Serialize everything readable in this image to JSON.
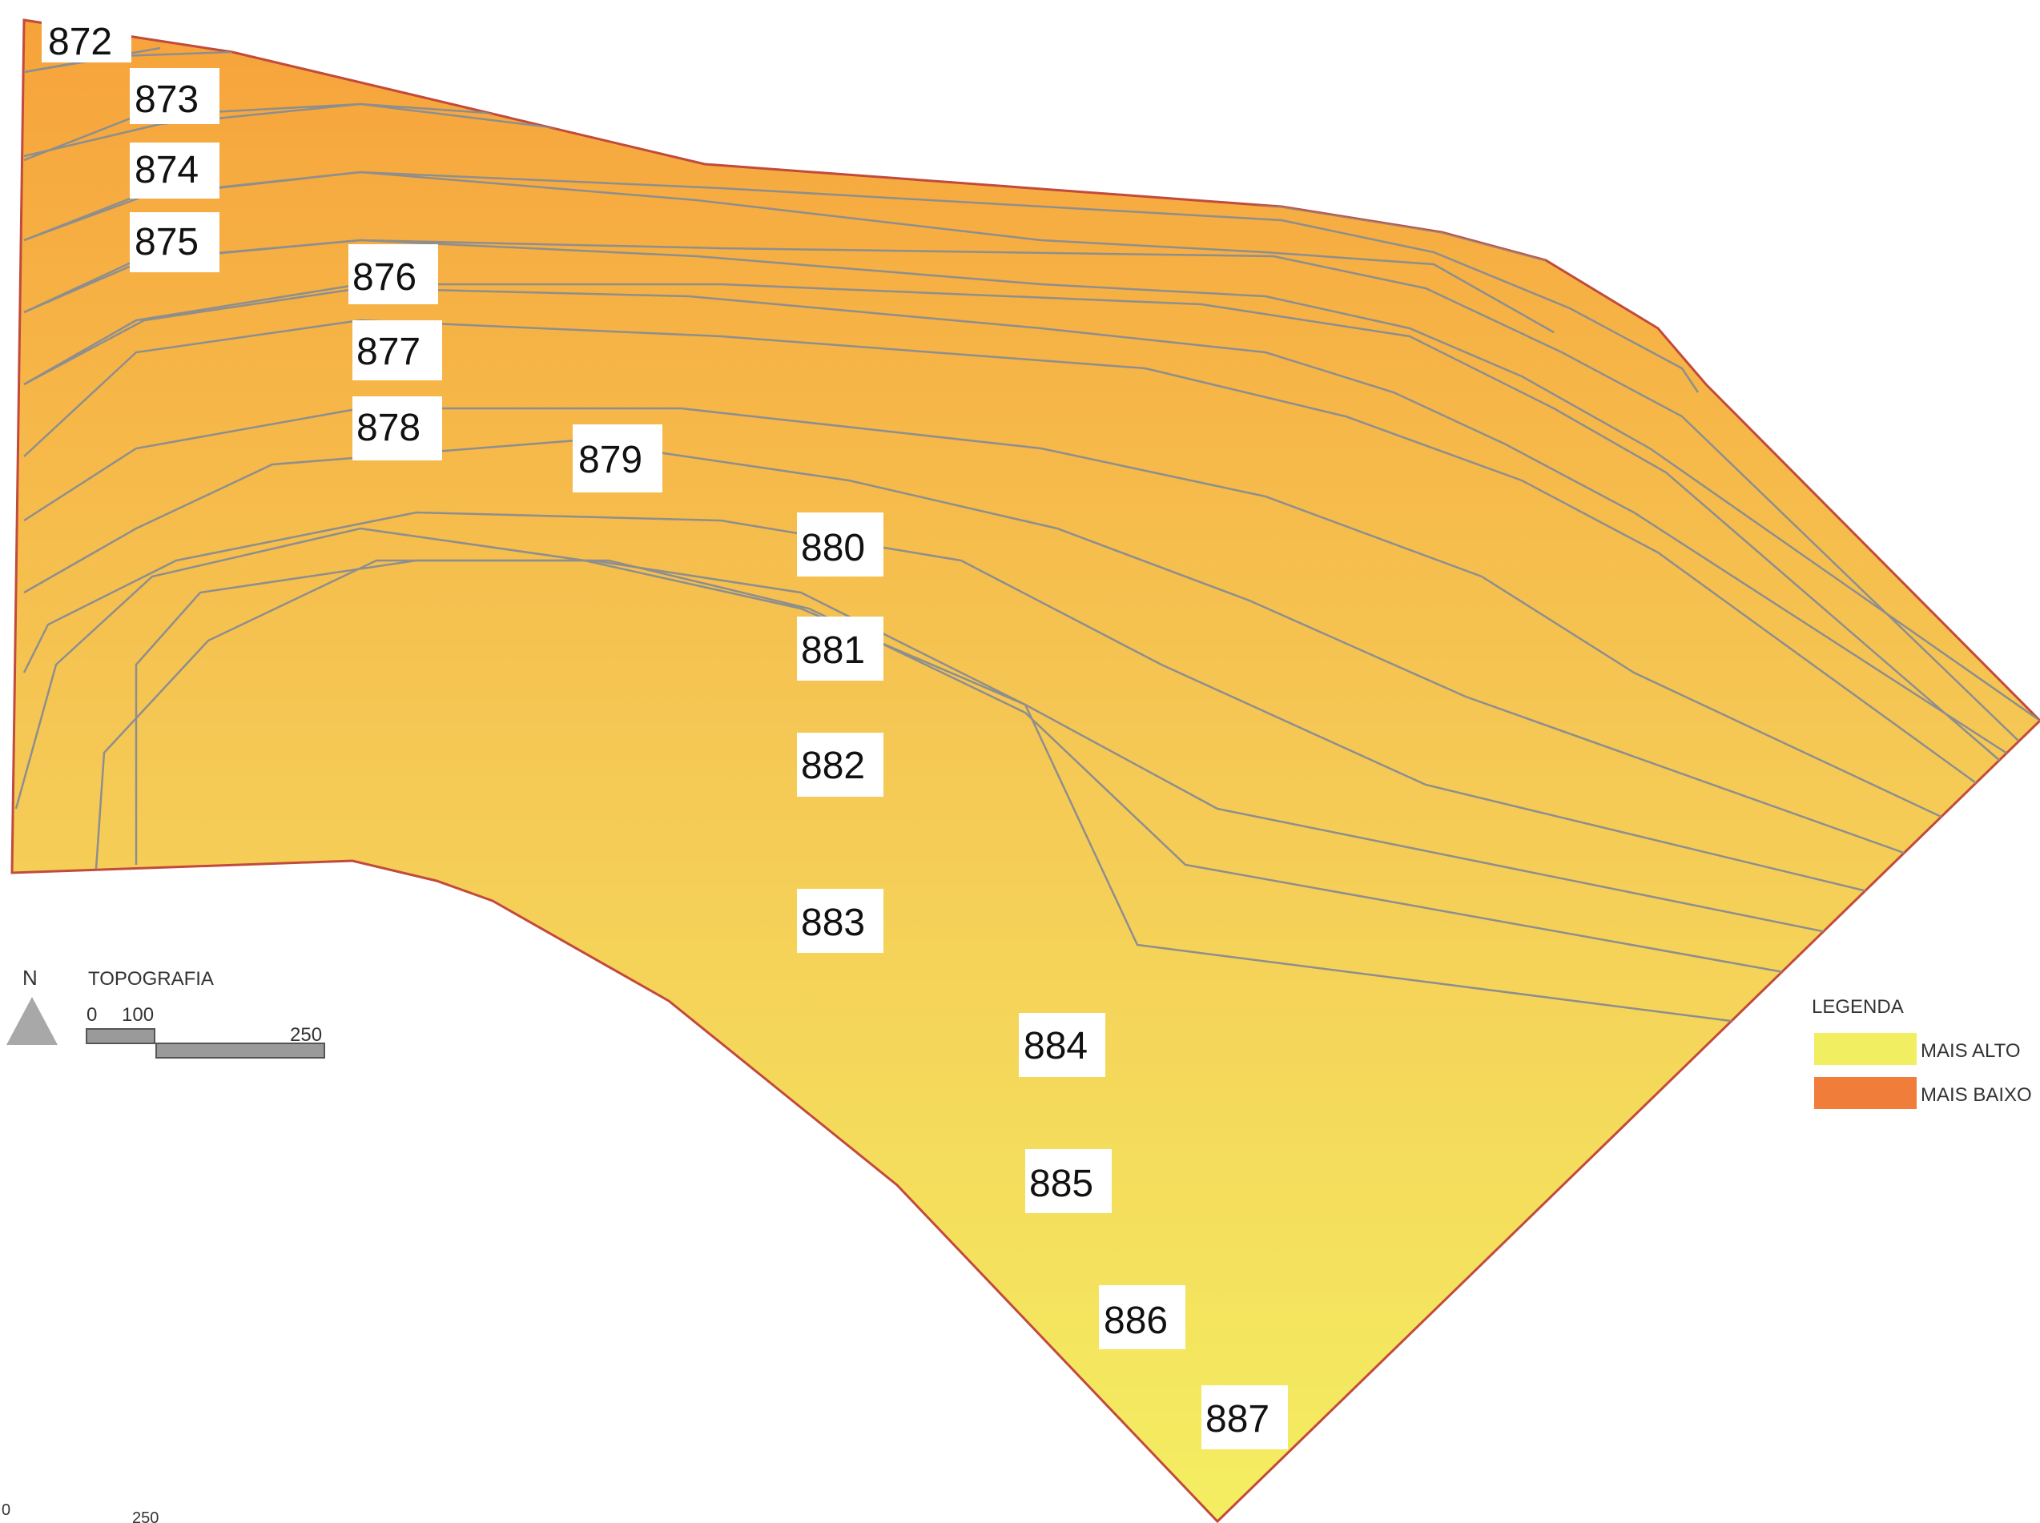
{
  "map": {
    "title": "TOPOGRAFIA",
    "north_label": "N",
    "scale": {
      "tick_start": "0",
      "tick_mid": "100",
      "tick_end": "250"
    },
    "corner_scale": {
      "tick_start": "0",
      "tick_end": "250"
    },
    "legend": {
      "title": "LEGENDA",
      "items": [
        {
          "label": "MAIS ALTO",
          "color": "#F2EE62"
        },
        {
          "label": "MAIS BAIXO",
          "color": "#F07D3A"
        }
      ]
    },
    "colors": {
      "boundary": "#C24A3C",
      "contour": "#8E8E8E",
      "gradient_low": "#F6A33A",
      "gradient_high": "#F4EE62",
      "north_arrow": "#A8A8A8",
      "label_background": "#FFFFFF"
    },
    "contour_labels": [
      "872",
      "873",
      "874",
      "875",
      "876",
      "877",
      "878",
      "879",
      "880",
      "881",
      "882",
      "883",
      "884",
      "885",
      "886",
      "887"
    ]
  }
}
